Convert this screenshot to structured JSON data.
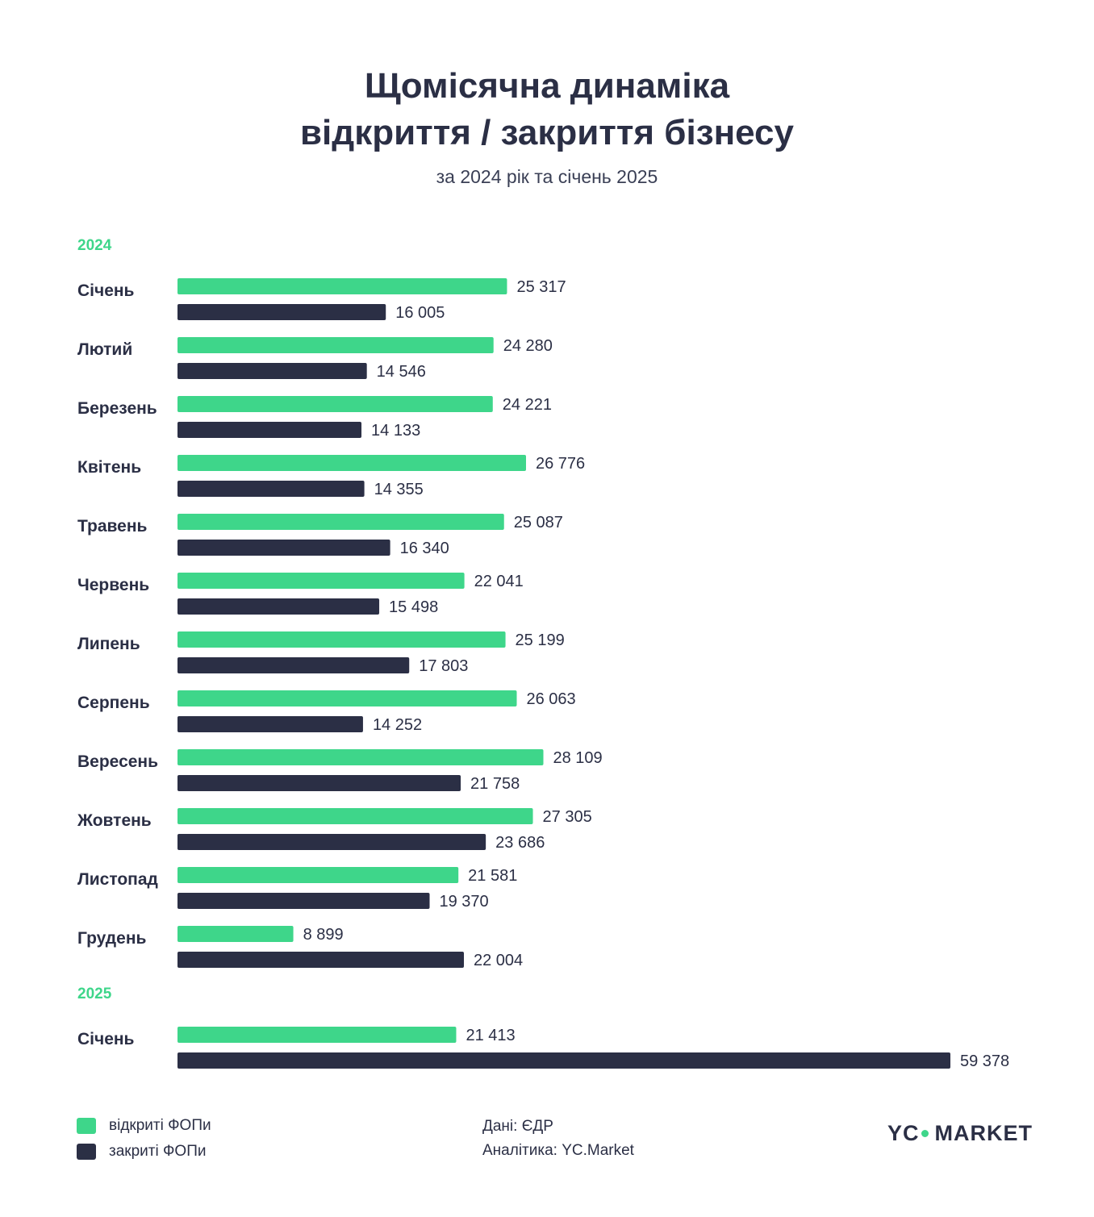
{
  "title": [
    "Щомісячна динаміка",
    "відкриття / закриття бізнесу"
  ],
  "subtitle": "за 2024 рік та січень 2025",
  "colors": {
    "opened": "#3ed68a",
    "closed": "#2b2f45",
    "year_label": "#3ed68a",
    "text": "#2b2f45"
  },
  "legend": {
    "opened": "відкриті ФОПи",
    "closed": "закриті ФОПи"
  },
  "credits": {
    "data": "Дані: ЄДР",
    "analytics": "Аналітика: YC.Market"
  },
  "logo": {
    "left": "YC",
    "right": "MARKET"
  },
  "chart_data": {
    "type": "bar",
    "orientation": "horizontal",
    "xlim": [
      0,
      59378
    ],
    "series": [
      {
        "name": "відкриті ФОПи",
        "key": "opened"
      },
      {
        "name": "закриті ФОПи",
        "key": "closed"
      }
    ],
    "groups": [
      {
        "year": "2024",
        "months": [
          {
            "label": "Січень",
            "opened": 25317,
            "closed": 16005,
            "opened_text": "25 317",
            "closed_text": "16 005"
          },
          {
            "label": "Лютий",
            "opened": 24280,
            "closed": 14546,
            "opened_text": "24 280",
            "closed_text": "14 546"
          },
          {
            "label": "Березень",
            "opened": 24221,
            "closed": 14133,
            "opened_text": "24 221",
            "closed_text": "14 133"
          },
          {
            "label": "Квітень",
            "opened": 26776,
            "closed": 14355,
            "opened_text": "26 776",
            "closed_text": "14 355"
          },
          {
            "label": "Травень",
            "opened": 25087,
            "closed": 16340,
            "opened_text": "25 087",
            "closed_text": "16 340"
          },
          {
            "label": "Червень",
            "opened": 22041,
            "closed": 15498,
            "opened_text": "22 041",
            "closed_text": "15 498"
          },
          {
            "label": "Липень",
            "opened": 25199,
            "closed": 17803,
            "opened_text": "25 199",
            "closed_text": "17 803"
          },
          {
            "label": "Серпень",
            "opened": 26063,
            "closed": 14252,
            "opened_text": "26 063",
            "closed_text": "14 252"
          },
          {
            "label": "Вересень",
            "opened": 28109,
            "closed": 21758,
            "opened_text": "28 109",
            "closed_text": "21 758"
          },
          {
            "label": "Жовтень",
            "opened": 27305,
            "closed": 23686,
            "opened_text": "27 305",
            "closed_text": "23 686"
          },
          {
            "label": "Листопад",
            "opened": 21581,
            "closed": 19370,
            "opened_text": "21 581",
            "closed_text": "19 370"
          },
          {
            "label": "Грудень",
            "opened": 8899,
            "closed": 22004,
            "opened_text": "8 899",
            "closed_text": "22 004"
          }
        ]
      },
      {
        "year": "2025",
        "months": [
          {
            "label": "Січень",
            "opened": 21413,
            "closed": 59378,
            "opened_text": "21 413",
            "closed_text": "59 378"
          }
        ]
      }
    ]
  }
}
